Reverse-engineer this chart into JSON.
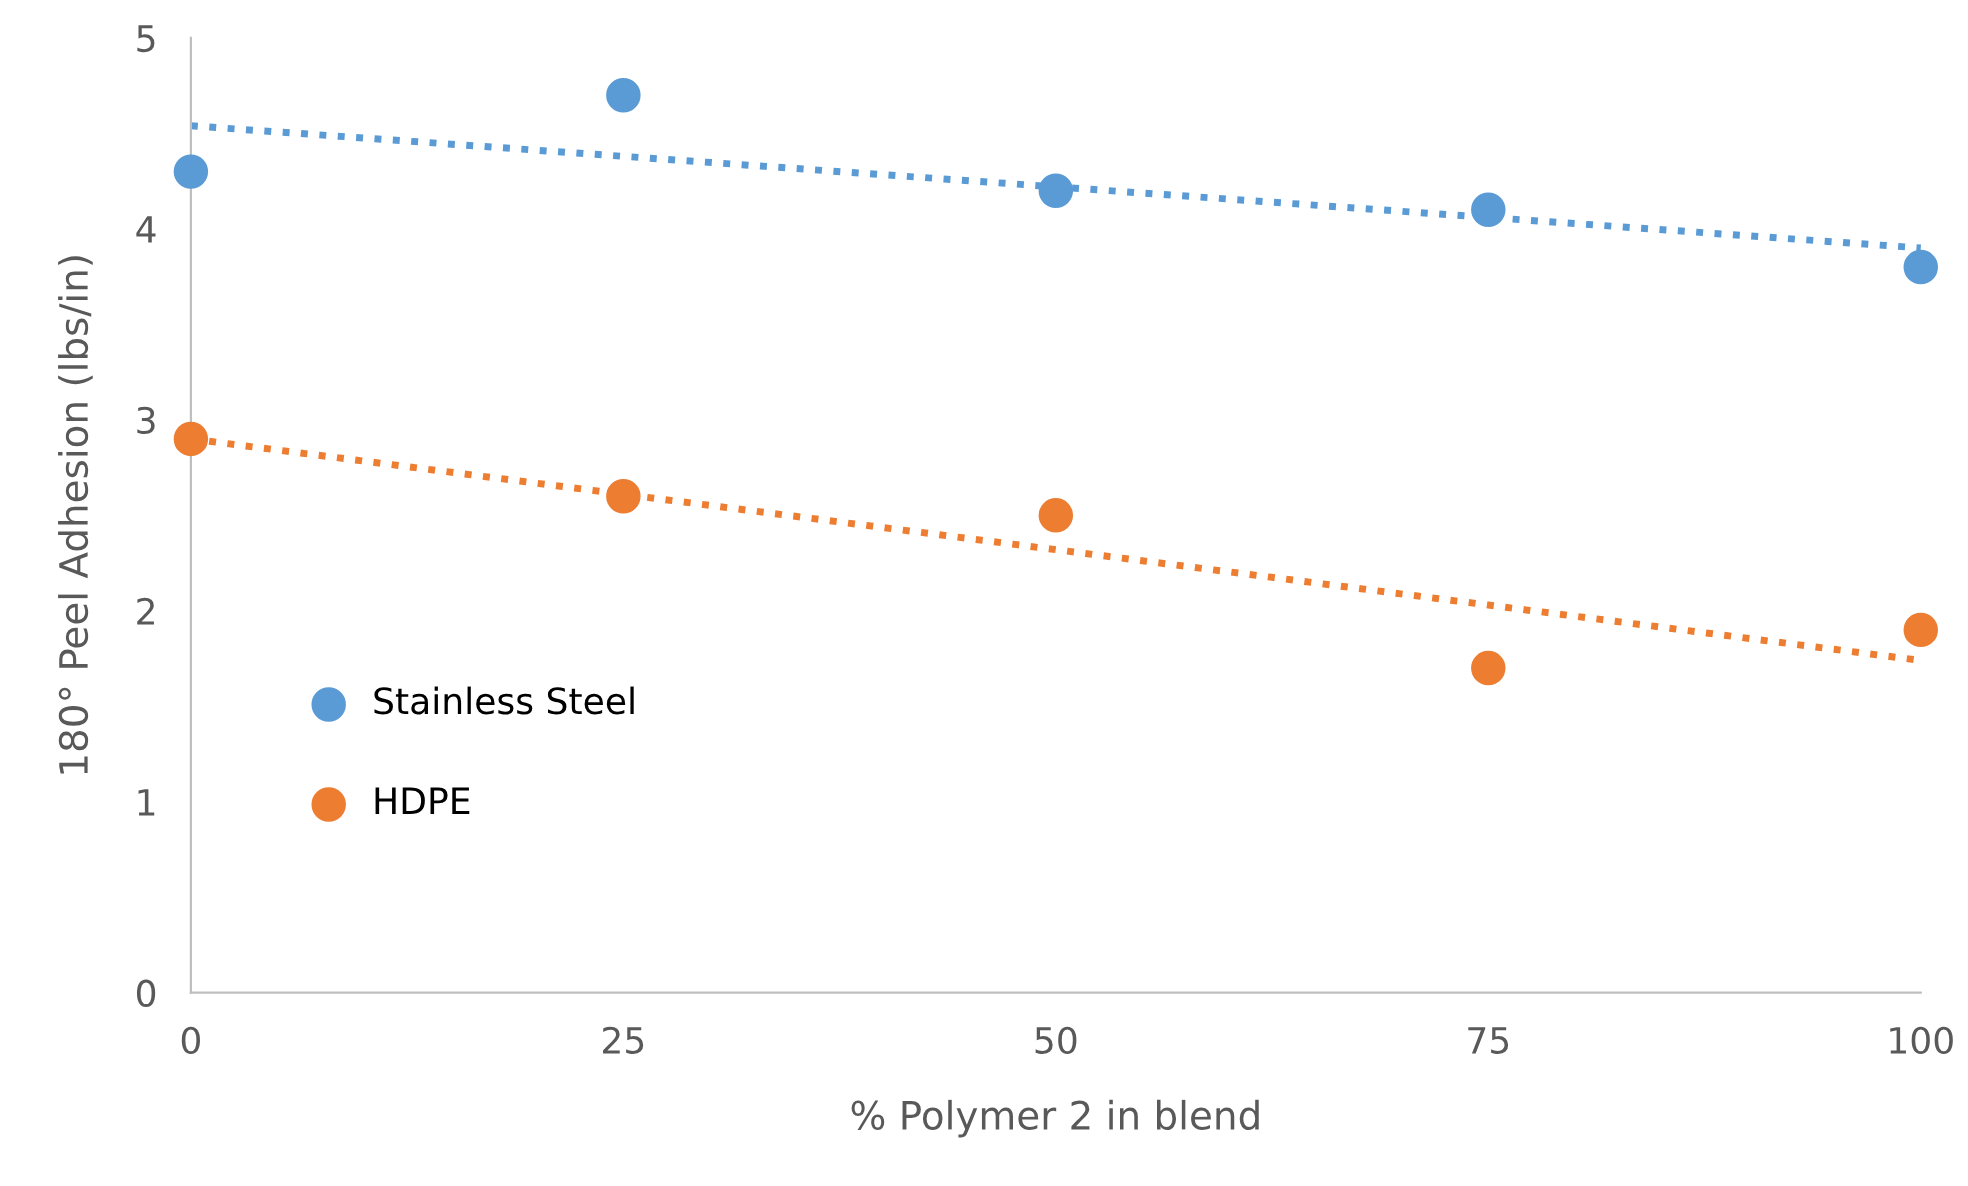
{
  "chart_data": {
    "type": "scatter",
    "xlabel": "% Polymer 2 in blend",
    "ylabel": "180° Peel Adhesion (lbs/in)",
    "x": [
      0,
      25,
      50,
      75,
      100
    ],
    "series": [
      {
        "name": "Stainless Steel",
        "color": "#5b9bd5",
        "values": [
          4.3,
          4.7,
          4.2,
          4.1,
          3.8
        ],
        "marker": "circle"
      },
      {
        "name": "HDPE",
        "color": "#ed7d31",
        "values": [
          2.9,
          2.6,
          2.5,
          1.7,
          1.9
        ],
        "marker": "circle"
      },
      {
        "type": "line",
        "color": "#5b9bd5",
        "values": [
          4.54,
          4.38,
          4.22,
          4.06,
          3.9
        ],
        "line_style": "dotted",
        "marker": "none"
      },
      {
        "type": "line",
        "color": "#ed7d31",
        "values": [
          2.9,
          2.61,
          2.32,
          2.03,
          1.74
        ],
        "line_style": "dotted",
        "marker": "none"
      }
    ],
    "xlim": [
      0,
      100
    ],
    "xticks": [
      0,
      25,
      50,
      75,
      100
    ],
    "ylim": [
      0,
      5
    ],
    "yticks": [
      0,
      1,
      2,
      3,
      4,
      5
    ],
    "grid": false,
    "legend": "center left"
  }
}
